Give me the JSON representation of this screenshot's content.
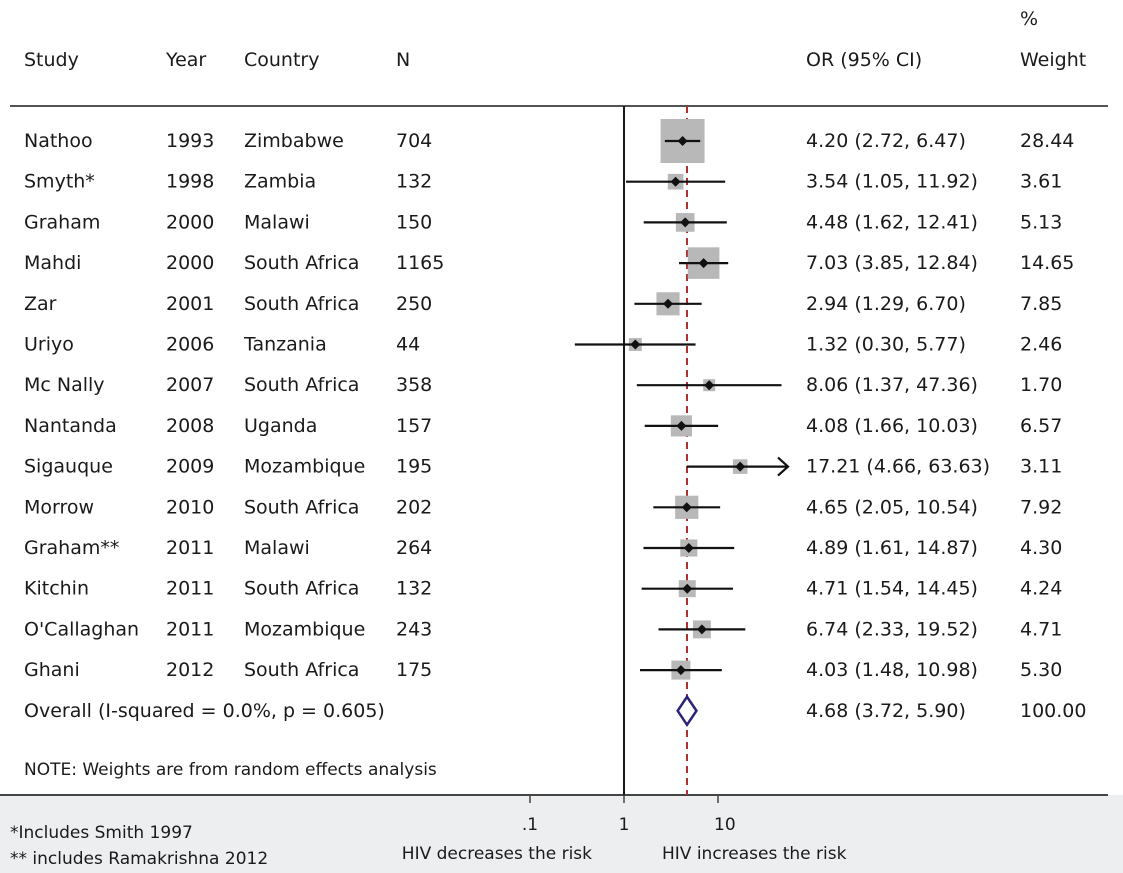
{
  "columns": {
    "study": "Study",
    "year": "Year",
    "country": "Country",
    "n": "N",
    "or_ci": "OR (95% CI)",
    "weight_line1": "%",
    "weight_line2": "Weight"
  },
  "overall_label": "Overall  (I-squared = 0.0%, p = 0.605)",
  "note": "NOTE: Weights are from random effects analysis",
  "footnotes": [
    "*Includes Smith 1997",
    "** includes Ramakrishna 2012"
  ],
  "axis_label_left": "HIV decreases the risk",
  "axis_label_right": "HIV increases the risk",
  "colors": {
    "marker": "#111111",
    "box": "#b8b8b8",
    "overall_diamond": "#2a2277",
    "reference_line": "#b03030",
    "footer": "#eceef0"
  },
  "chart_data": {
    "type": "forest",
    "scale": "log",
    "xlim": [
      0.1,
      20
    ],
    "xticks": [
      {
        "value": 0.1,
        "label": ".1"
      },
      {
        "value": 1,
        "label": "1"
      },
      {
        "value": 10,
        "label": "10"
      }
    ],
    "null_line": 1,
    "overall_line": 4.68,
    "studies": [
      {
        "study": "Nathoo",
        "year": "1993",
        "country": "Zimbabwe",
        "n": "704",
        "or": 4.2,
        "lo": 2.72,
        "hi": 6.47,
        "or_ci": "4.20 (2.72, 6.47)",
        "weight": "28.44"
      },
      {
        "study": "Smyth*",
        "year": "1998",
        "country": "Zambia",
        "n": "132",
        "or": 3.54,
        "lo": 1.05,
        "hi": 11.92,
        "or_ci": "3.54 (1.05, 11.92)",
        "weight": "3.61"
      },
      {
        "study": "Graham",
        "year": "2000",
        "country": "Malawi",
        "n": "150",
        "or": 4.48,
        "lo": 1.62,
        "hi": 12.41,
        "or_ci": "4.48 (1.62, 12.41)",
        "weight": "5.13"
      },
      {
        "study": "Mahdi",
        "year": "2000",
        "country": "South Africa",
        "n": "1165",
        "or": 7.03,
        "lo": 3.85,
        "hi": 12.84,
        "or_ci": "7.03 (3.85, 12.84)",
        "weight": "14.65"
      },
      {
        "study": "Zar",
        "year": "2001",
        "country": "South Africa",
        "n": "250",
        "or": 2.94,
        "lo": 1.29,
        "hi": 6.7,
        "or_ci": "2.94 (1.29, 6.70)",
        "weight": "7.85"
      },
      {
        "study": "Uriyo",
        "year": "2006",
        "country": "Tanzania",
        "n": "44",
        "or": 1.32,
        "lo": 0.3,
        "hi": 5.77,
        "or_ci": "1.32 (0.30, 5.77)",
        "weight": "2.46"
      },
      {
        "study": "Mc Nally",
        "year": "2007",
        "country": "South Africa",
        "n": "358",
        "or": 8.06,
        "lo": 1.37,
        "hi": 47.36,
        "or_ci": "8.06 (1.37, 47.36)",
        "weight": "1.70"
      },
      {
        "study": "Nantanda",
        "year": "2008",
        "country": "Uganda",
        "n": "157",
        "or": 4.08,
        "lo": 1.66,
        "hi": 10.03,
        "or_ci": "4.08 (1.66, 10.03)",
        "weight": "6.57"
      },
      {
        "study": "Sigauque",
        "year": "2009",
        "country": "Mozambique",
        "n": "195",
        "or": 17.21,
        "lo": 4.66,
        "hi": 63.63,
        "or_ci": "17.21 (4.66, 63.63)",
        "weight": "3.11"
      },
      {
        "study": "Morrow",
        "year": "2010",
        "country": "South Africa",
        "n": "202",
        "or": 4.65,
        "lo": 2.05,
        "hi": 10.54,
        "or_ci": "4.65 (2.05, 10.54)",
        "weight": "7.92"
      },
      {
        "study": "Graham**",
        "year": "2011",
        "country": "Malawi",
        "n": "264",
        "or": 4.89,
        "lo": 1.61,
        "hi": 14.87,
        "or_ci": "4.89 (1.61, 14.87)",
        "weight": "4.30"
      },
      {
        "study": "Kitchin",
        "year": "2011",
        "country": "South Africa",
        "n": "132",
        "or": 4.71,
        "lo": 1.54,
        "hi": 14.45,
        "or_ci": "4.71 (1.54, 14.45)",
        "weight": "4.24"
      },
      {
        "study": "O'Callaghan",
        "year": "2011",
        "country": "Mozambique",
        "n": "243",
        "or": 6.74,
        "lo": 2.33,
        "hi": 19.52,
        "or_ci": "6.74 (2.33, 19.52)",
        "weight": "4.71"
      },
      {
        "study": "Ghani",
        "year": "2012",
        "country": "South Africa",
        "n": "175",
        "or": 4.03,
        "lo": 1.48,
        "hi": 10.98,
        "or_ci": "4.03 (1.48, 10.98)",
        "weight": "5.30"
      }
    ],
    "overall": {
      "or": 4.68,
      "lo": 3.72,
      "hi": 5.9,
      "or_ci": "4.68 (3.72, 5.90)",
      "weight": "100.00"
    }
  }
}
